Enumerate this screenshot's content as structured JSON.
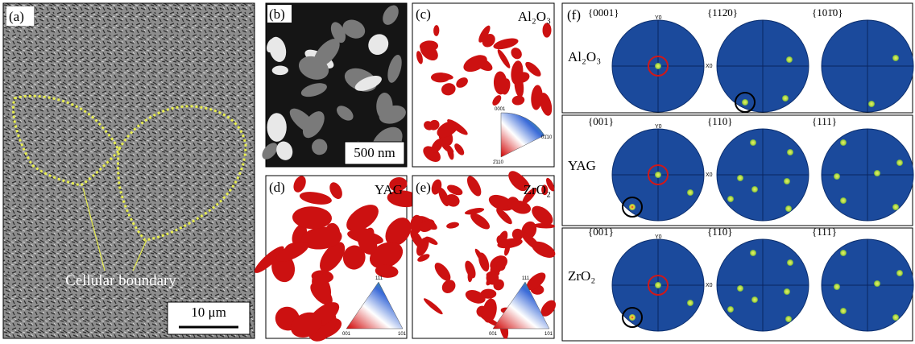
{
  "panels": {
    "a": {
      "label": "(a)",
      "annotation": "Cellular boundary",
      "scale_bar": "10 μm"
    },
    "b": {
      "label": "(b)",
      "scale_bar": "500 nm"
    },
    "c": {
      "label": "(c)",
      "phase": "Al₂O₃",
      "ipf_labels": [
        "0001",
        "01̄10",
        "2̄110"
      ]
    },
    "d": {
      "label": "(d)",
      "phase": "YAG",
      "ipf_labels": [
        "111",
        "001",
        "101"
      ]
    },
    "e": {
      "label": "(e)",
      "phase": "ZrO₂",
      "ipf_labels": [
        "111",
        "001",
        "101"
      ]
    },
    "f": {
      "label": "(f)",
      "rows": [
        {
          "phase": "Al₂O₃",
          "planes": [
            "{0001}",
            "{112̄0}",
            "{101̄0}"
          ],
          "axis_labels": [
            "Y0",
            "X0"
          ]
        },
        {
          "phase": "YAG",
          "planes": [
            "{001}",
            "{110}",
            "{111}"
          ],
          "axis_labels": [
            "Y0",
            "X0"
          ]
        },
        {
          "phase": "ZrO₂",
          "planes": [
            "{001}",
            "{110}",
            "{111}"
          ],
          "axis_labels": [
            "Y0",
            "X0"
          ]
        }
      ]
    }
  }
}
